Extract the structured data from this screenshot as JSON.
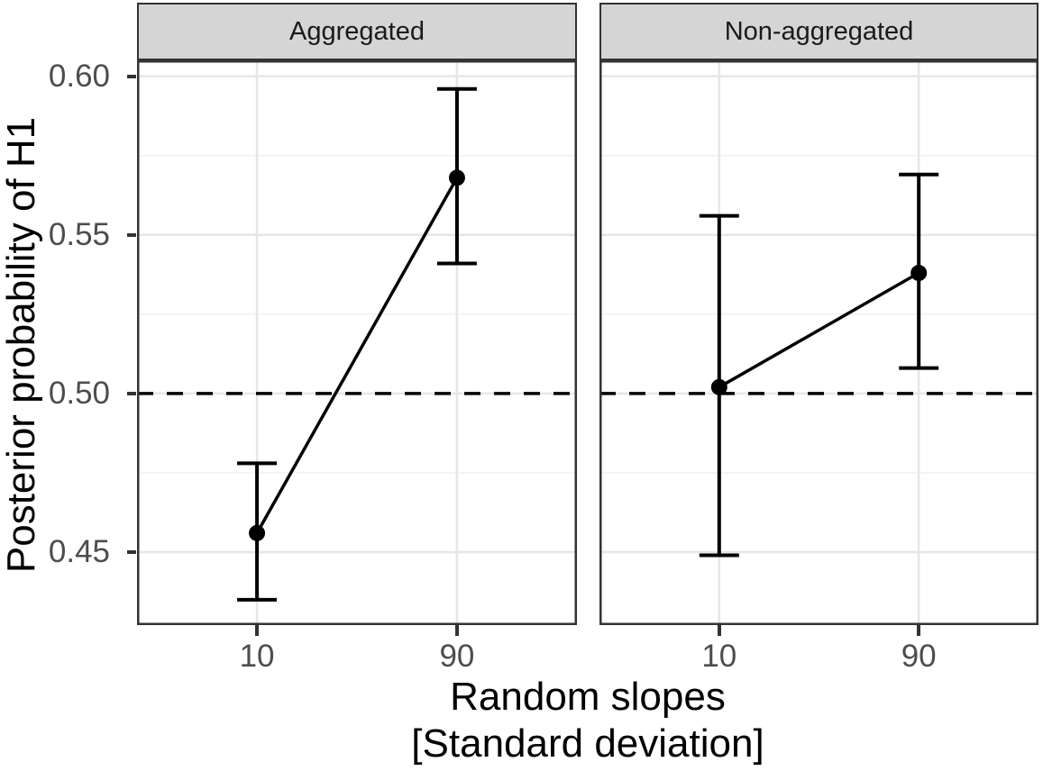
{
  "chart_data": {
    "type": "line",
    "subtype": "pointrange-errorbar-faceted",
    "title": "",
    "xlabel_line1": "Random slopes",
    "xlabel_line2": "[Standard deviation]",
    "ylabel": "Posterior probability of H1",
    "categories": [
      "10",
      "90"
    ],
    "facets": [
      {
        "label": "Aggregated",
        "points": [
          {
            "x": "10",
            "mean": 0.456,
            "lower": 0.435,
            "upper": 0.478
          },
          {
            "x": "90",
            "mean": 0.568,
            "lower": 0.541,
            "upper": 0.596
          }
        ]
      },
      {
        "label": "Non-aggregated",
        "points": [
          {
            "x": "10",
            "mean": 0.502,
            "lower": 0.449,
            "upper": 0.556
          },
          {
            "x": "90",
            "mean": 0.538,
            "lower": 0.508,
            "upper": 0.569
          }
        ]
      }
    ],
    "y_ticks": [
      {
        "value": 0.45,
        "label": "0.45"
      },
      {
        "value": 0.5,
        "label": "0.50"
      },
      {
        "value": 0.55,
        "label": "0.55"
      },
      {
        "value": 0.6,
        "label": "0.60"
      }
    ],
    "y_minor_ticks": [
      0.475,
      0.525,
      0.575
    ],
    "ylim": [
      0.427,
      0.605
    ],
    "reference_line": {
      "y": 0.5,
      "style": "dashed"
    },
    "grid": "major-and-minor-horizontal, major-vertical",
    "legend_position": "none",
    "colors": {
      "strip_background": "#D5D5D5",
      "panel_border": "#333333",
      "grid_major": "#E6E6E6",
      "grid_minor": "#F2F2F2",
      "axis_text": "#4D4D4D",
      "axis_title": "#000000",
      "data": "#000000",
      "reference_line": "#000000",
      "background": "#FFFFFF"
    }
  }
}
